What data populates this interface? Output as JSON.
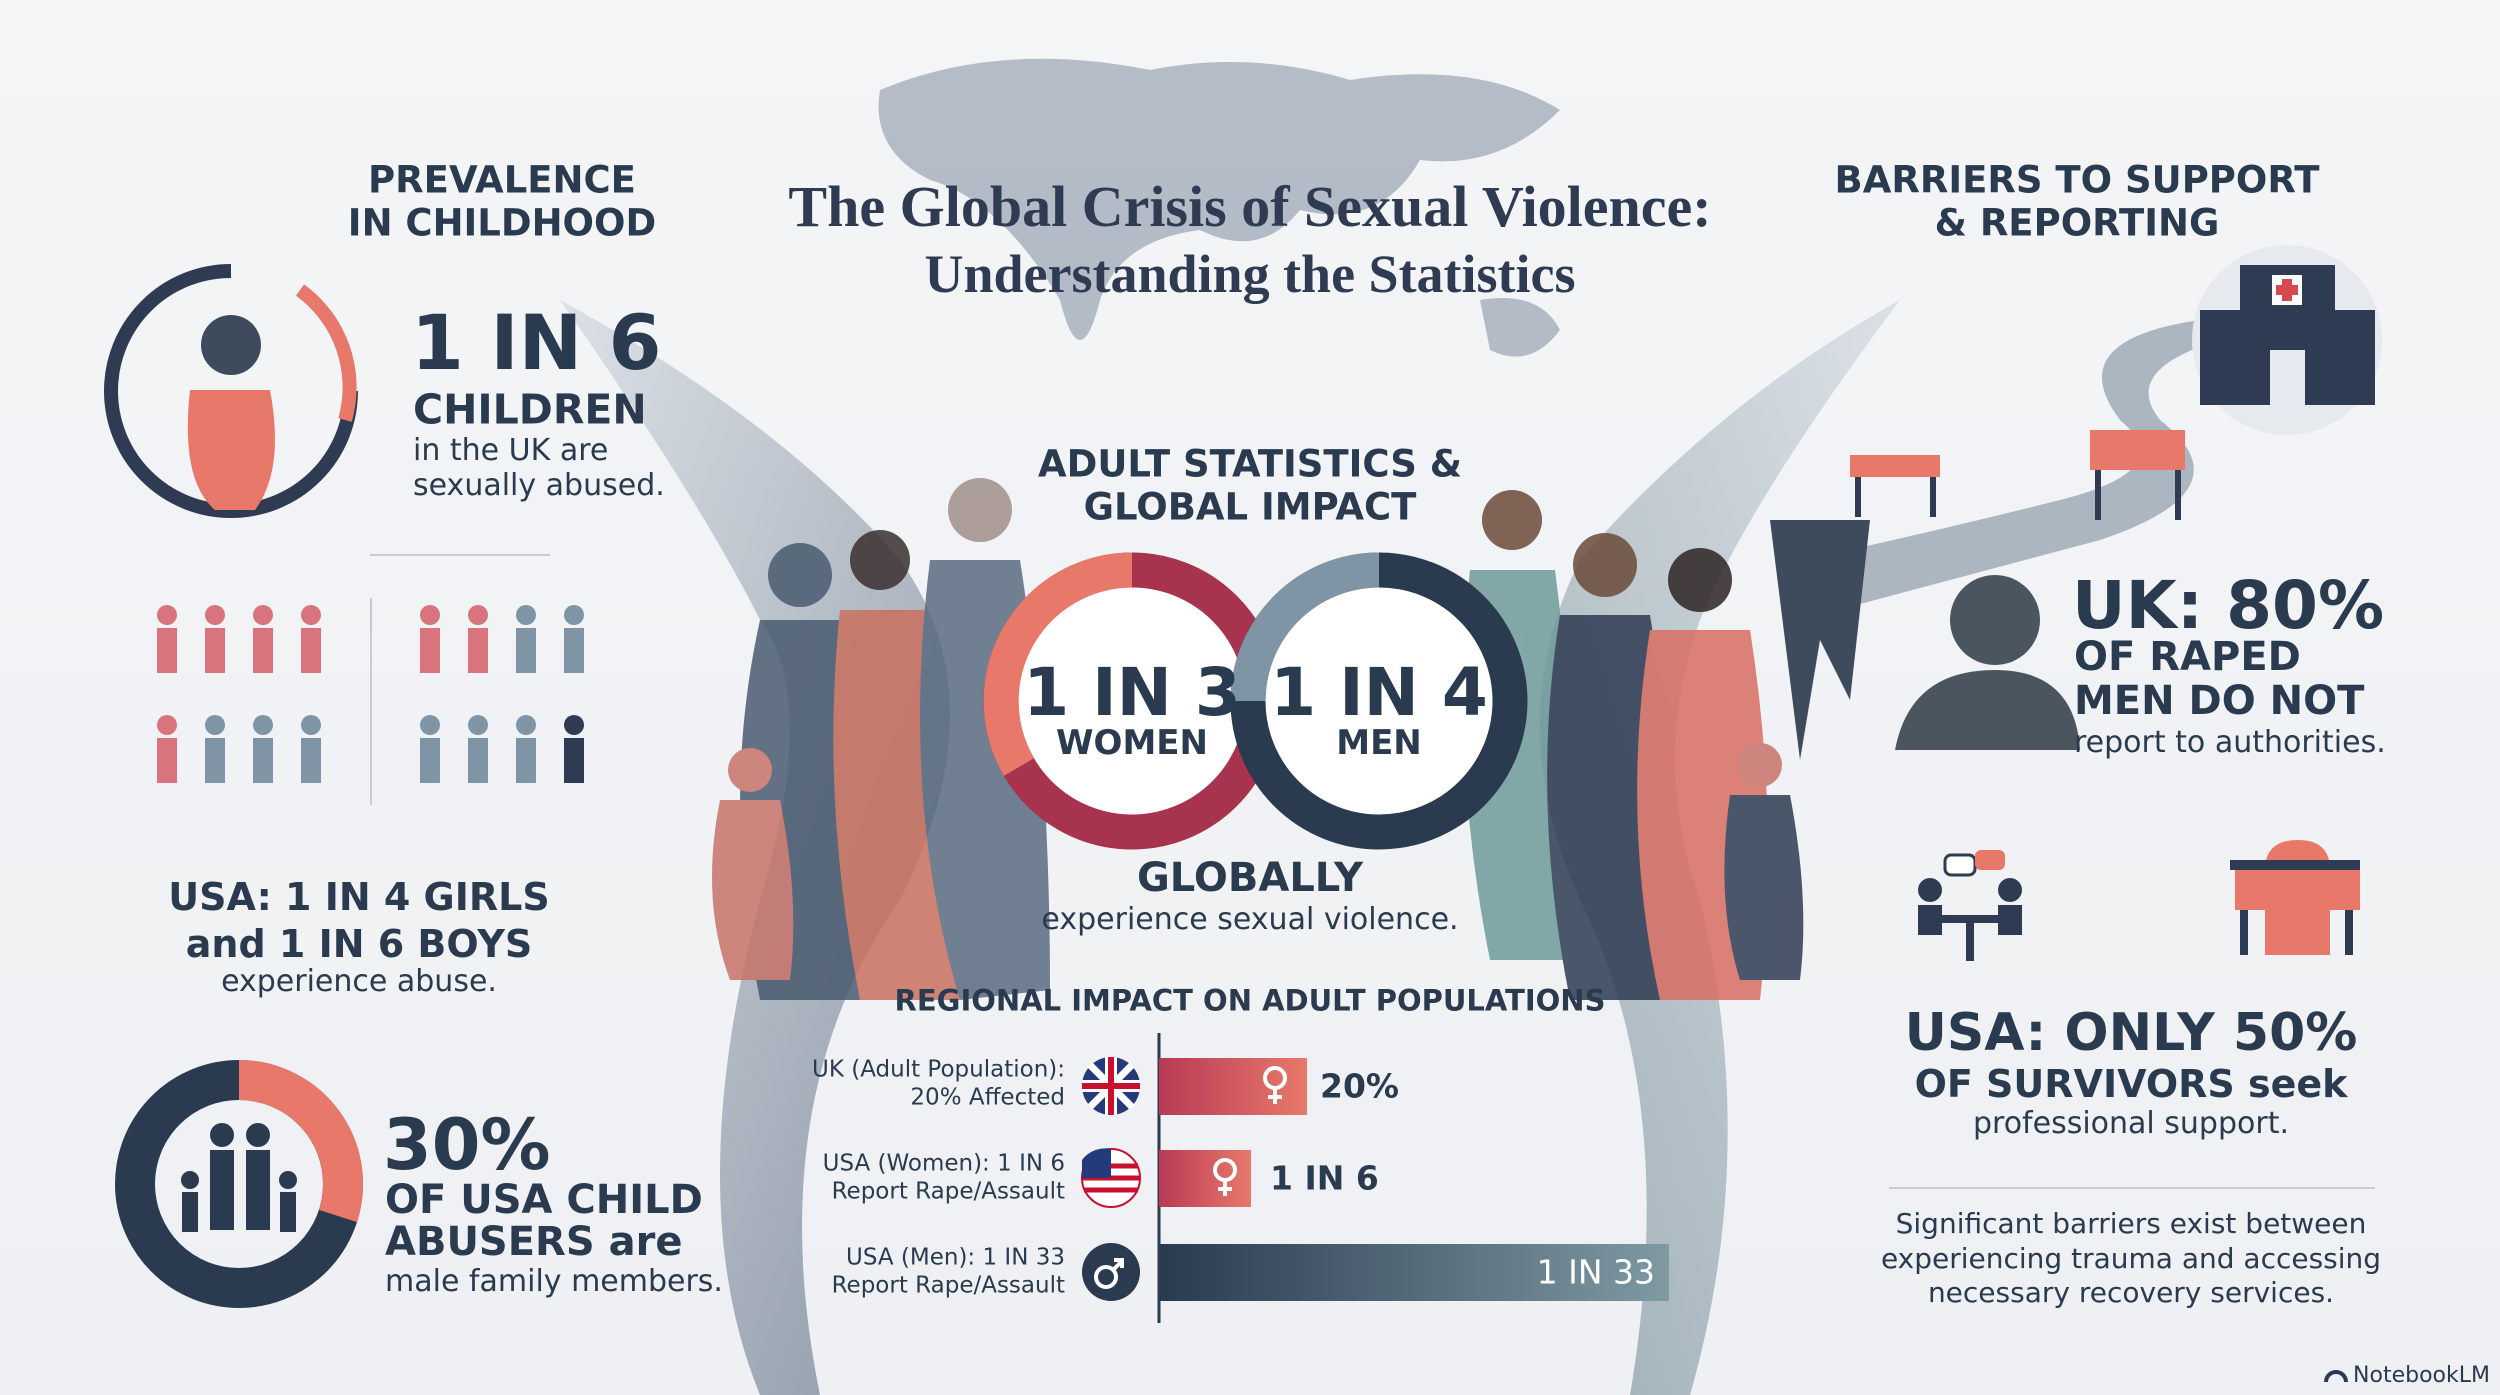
{
  "header": {
    "title": [
      "The Global Crisis of Sexual Violence:",
      "Understanding the Statistics"
    ]
  },
  "childhood": {
    "heading": [
      "PREVALENCE",
      "IN CHILDHOOD"
    ],
    "stat": "1 IN 6",
    "subject": "CHILDREN",
    "caption": [
      "in the UK are",
      "sexually abused."
    ],
    "usa": [
      "USA: 1 IN 4 GIRLS",
      "and 1 IN 6 BOYS"
    ],
    "usa_caption": "experience abuse.",
    "abusers_stat": "30%",
    "abusers": [
      "OF USA CHILD",
      "ABUSERS are"
    ],
    "abusers_caption": "male family members."
  },
  "adult": {
    "heading": [
      "ADULT STATISTICS &",
      "GLOBAL IMPACT"
    ],
    "women": {
      "stat": "1 IN 3",
      "label": "WOMEN"
    },
    "men": {
      "stat": "1 IN 4",
      "label": "MEN"
    },
    "globally": "GLOBALLY",
    "caption": "experience sexual violence.",
    "regional": {
      "heading": "REGIONAL IMPACT ON ADULT POPULATIONS",
      "rows": [
        {
          "label": [
            "UK (Adult Population):",
            "20% Affected"
          ],
          "value": "20%"
        },
        {
          "label": [
            "USA (Women): 1 IN 6",
            "Report Rape/Assault"
          ],
          "value": "1 IN 6"
        },
        {
          "label": [
            "USA (Men): 1 IN 33",
            "Report Rape/Assault"
          ],
          "value": "1 IN 33"
        }
      ]
    }
  },
  "barriers": {
    "heading": [
      "BARRIERS TO SUPPORT",
      "& REPORTING"
    ],
    "uk_stat": "UK: 80%",
    "uk": [
      "OF RAPED",
      "MEN DO NOT"
    ],
    "uk_caption": "report to authorities.",
    "usa_stat": "USA: ONLY 50%",
    "usa": "OF SURVIVORS seek",
    "usa_caption": "professional support.",
    "note": [
      "Significant barriers exist between",
      "experiencing trauma and accessing",
      "necessary recovery services."
    ]
  },
  "footer": {
    "brand": "NotebookLM"
  }
}
